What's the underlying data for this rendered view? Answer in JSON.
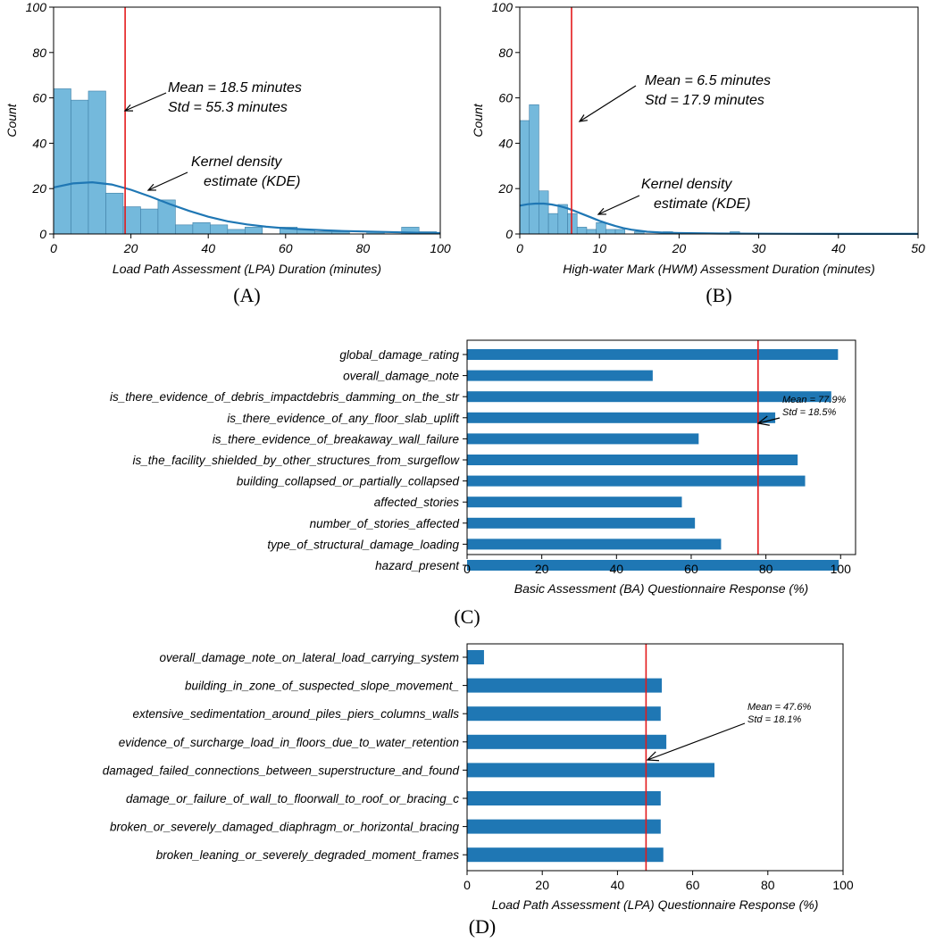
{
  "chart_data": [
    {
      "id": "A",
      "type": "histogram",
      "panel_label": "(A)",
      "xlabel": "Load Path Assessment (LPA) Duration (minutes)",
      "ylabel": "Count",
      "xlim": [
        0,
        100
      ],
      "ylim": [
        0,
        100
      ],
      "xticks": [
        0,
        20,
        40,
        60,
        80,
        100
      ],
      "yticks": [
        0,
        20,
        40,
        60,
        80,
        100
      ],
      "bin_width": 4.5,
      "counts": [
        64,
        59,
        63,
        18,
        12,
        11,
        15,
        4,
        5,
        4,
        2,
        3,
        0,
        3,
        2,
        1,
        1,
        0,
        1,
        0,
        3,
        1
      ],
      "kde": [
        [
          0,
          20.5
        ],
        [
          5,
          22.3
        ],
        [
          10,
          22.8
        ],
        [
          15,
          21.8
        ],
        [
          20,
          19.5
        ],
        [
          25,
          16.5
        ],
        [
          30,
          13.2
        ],
        [
          35,
          10.2
        ],
        [
          40,
          7.6
        ],
        [
          45,
          5.6
        ],
        [
          50,
          4.2
        ],
        [
          55,
          3.2
        ],
        [
          60,
          2.5
        ],
        [
          65,
          2.0
        ],
        [
          70,
          1.6
        ],
        [
          75,
          1.3
        ],
        [
          80,
          1.1
        ],
        [
          85,
          0.9
        ],
        [
          90,
          0.7
        ],
        [
          95,
          0.5
        ],
        [
          100,
          0.4
        ]
      ],
      "mean": 18.5,
      "mean_text": "Mean = 18.5 minutes",
      "std_text": "Std     = 55.3 minutes",
      "kde_text_1": "Kernel density",
      "kde_text_2": "estimate (KDE)"
    },
    {
      "id": "B",
      "type": "histogram",
      "panel_label": "(B)",
      "xlabel": "High-water Mark (HWM) Assessment Duration (minutes)",
      "ylabel": "Count",
      "xlim": [
        0,
        50
      ],
      "ylim": [
        0,
        100
      ],
      "xticks": [
        0,
        10,
        20,
        30,
        40,
        50
      ],
      "yticks": [
        0,
        20,
        40,
        60,
        80,
        100
      ],
      "bin_width": 1.2,
      "counts": [
        50,
        57,
        19,
        9,
        13,
        9,
        3,
        2,
        5,
        2,
        2,
        0,
        1,
        0,
        0,
        1,
        0,
        0,
        0,
        0,
        0,
        0,
        1
      ],
      "kde": [
        [
          0,
          12.5
        ],
        [
          1,
          13.1
        ],
        [
          2,
          13.4
        ],
        [
          3,
          13.4
        ],
        [
          4,
          13.0
        ],
        [
          5,
          12.3
        ],
        [
          6,
          11.3
        ],
        [
          7,
          10.0
        ],
        [
          8,
          8.6
        ],
        [
          9,
          7.2
        ],
        [
          10,
          5.8
        ],
        [
          11,
          4.6
        ],
        [
          12,
          3.5
        ],
        [
          13,
          2.6
        ],
        [
          14,
          1.9
        ],
        [
          15,
          1.4
        ],
        [
          16,
          1.0
        ],
        [
          18,
          0.6
        ],
        [
          20,
          0.4
        ],
        [
          25,
          0.2
        ],
        [
          30,
          0.1
        ],
        [
          40,
          0.05
        ],
        [
          50,
          0.02
        ]
      ],
      "mean": 6.5,
      "mean_text": "Mean = 6.5 minutes",
      "std_text": "Std     = 17.9 minutes",
      "kde_text_1": "Kernel density",
      "kde_text_2": "estimate (KDE)"
    },
    {
      "id": "C",
      "type": "barh",
      "panel_label": "(C)",
      "xlabel": "Basic Assessment (BA) Questionnaire Response (%)",
      "xlim": [
        0,
        104
      ],
      "xticks": [
        0,
        20,
        40,
        60,
        80,
        100
      ],
      "categories": [
        "global_damage_rating",
        "overall_damage_note",
        "is_there_evidence_of_debris_impactdebris_damming_on_the_str",
        "is_there_evidence_of_any_floor_slab_uplift",
        "is_there_evidence_of_breakaway_wall_failure",
        "is_the_facility_shielded_by_other_structures_from_surgeflow",
        "building_collapsed_or_partially_collapsed",
        "affected_stories",
        "number_of_stories_affected",
        "type_of_structural_damage_loading",
        "hazard_present"
      ],
      "values": [
        99.3,
        49.7,
        97.5,
        82.5,
        62.0,
        88.5,
        90.5,
        57.5,
        61.0,
        68.0,
        99.5
      ],
      "mean": 77.9,
      "mean_text": "Mean = 77.9%",
      "std_text": "Std     = 18.5%"
    },
    {
      "id": "D",
      "type": "barh",
      "panel_label": "(D)",
      "xlabel": "Load Path Assessment (LPA) Questionnaire Response (%)",
      "xlim": [
        0,
        100
      ],
      "xticks": [
        0,
        20,
        40,
        60,
        80,
        100
      ],
      "categories": [
        "overall_damage_note_on_lateral_load_carrying_system",
        "building_in_zone_of_suspected_slope_movement_",
        "extensive_sedimentation_around_piles_piers_columns_walls",
        "evidence_of_surcharge_load_in_floors_due_to_water_retention",
        "damaged_failed_connections_between_superstructure_and_found",
        "damage_or_failure_of_wall_to_floorwall_to_roof_or_bracing_c",
        "broken_or_severely_damaged_diaphragm_or_horizontal_bracing",
        "broken_leaning_or_severely_degraded_moment_frames"
      ],
      "values": [
        4.5,
        51.8,
        51.5,
        53.0,
        65.8,
        51.5,
        51.5,
        52.2
      ],
      "mean": 47.6,
      "mean_text": "Mean = 47.6%",
      "std_text": "Std     = 18.1%"
    }
  ],
  "colors": {
    "hist_fill": "#74b9dc",
    "hist_edge": "#3f7fa6",
    "kde_line": "#1f77b4",
    "bar_fill": "#1f77b4",
    "mean_line": "#e31a1c"
  }
}
